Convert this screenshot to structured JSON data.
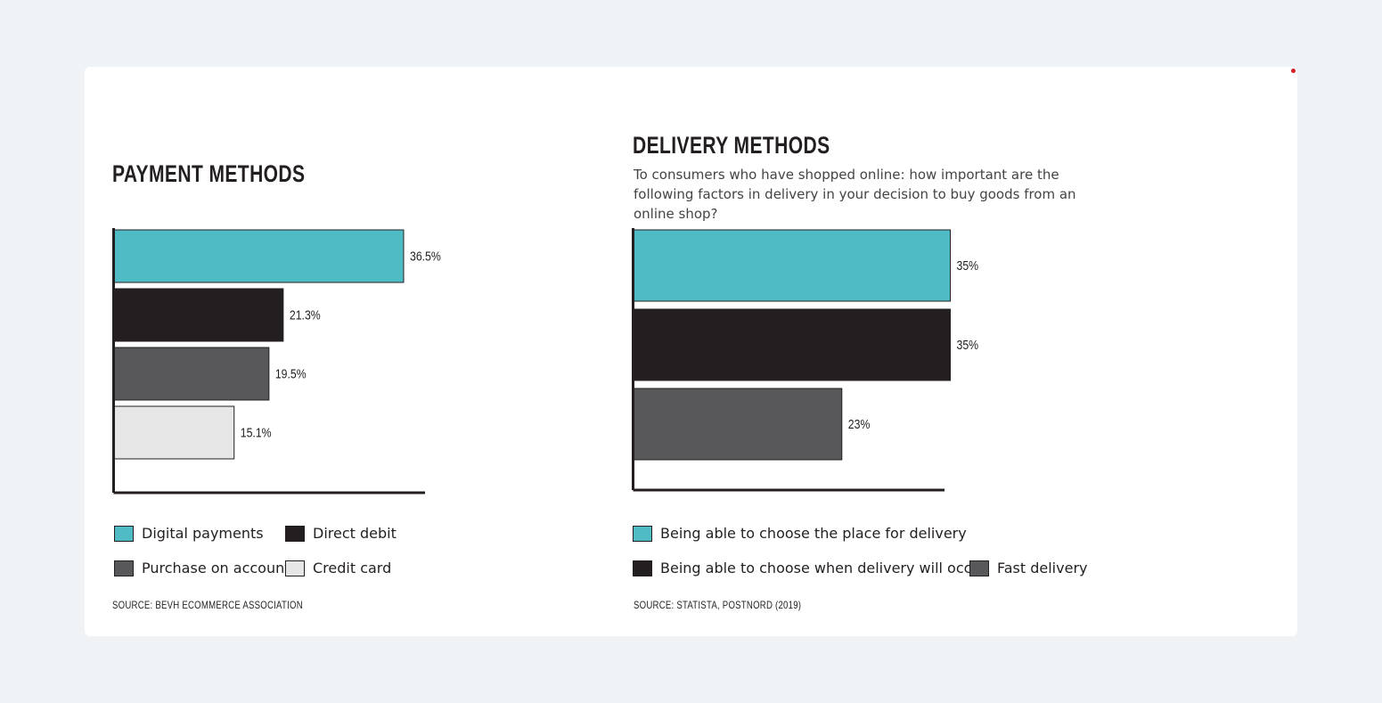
{
  "chart_data": [
    {
      "type": "bar",
      "orientation": "horizontal",
      "title": "PAYMENT METHODS",
      "categories": [
        "Digital payments",
        "Direct debit",
        "Purchase on account",
        "Credit card"
      ],
      "values": [
        36.5,
        21.3,
        19.5,
        15.1
      ],
      "value_labels": [
        "36.5%",
        "21.3%",
        "19.5%",
        "15.1%"
      ],
      "colors": [
        "#4fbcc5",
        "#231f20",
        "#58585a",
        "#e6e6e6"
      ],
      "xlim": [
        0,
        40
      ],
      "grid": false,
      "legend_position": "bottom",
      "legend": [
        {
          "label": "Digital payments",
          "color": "#4fbcc5"
        },
        {
          "label": "Direct debit",
          "color": "#231f20"
        },
        {
          "label": "Purchase on account",
          "color": "#58585a"
        },
        {
          "label": "Credit card",
          "color": "#e6e6e6"
        }
      ],
      "source": "SOURCE: BEVH ECOMMERCE ASSOCIATION"
    },
    {
      "type": "bar",
      "orientation": "horizontal",
      "title": "DELIVERY METHODS",
      "subtitle": "To consumers who have shopped online: how important are the following factors in delivery in your decision to buy goods from an online shop?",
      "categories": [
        "Being able to choose the place for delivery",
        "Being able to choose when delivery will occur",
        "Fast delivery"
      ],
      "values": [
        35,
        35,
        23
      ],
      "value_labels": [
        "35%",
        "35%",
        "23%"
      ],
      "colors": [
        "#4fbcc5",
        "#231f20",
        "#58585a"
      ],
      "xlim": [
        0,
        35
      ],
      "grid": false,
      "legend_position": "bottom",
      "legend": [
        {
          "label": "Being able to choose the place for delivery",
          "color": "#4fbcc5"
        },
        {
          "label": "Being able to choose when delivery will occur",
          "color": "#231f20"
        },
        {
          "label": "Fast delivery",
          "color": "#58585a"
        }
      ],
      "source": "SOURCE: STATISTA, POSTNORD (2019)"
    }
  ]
}
